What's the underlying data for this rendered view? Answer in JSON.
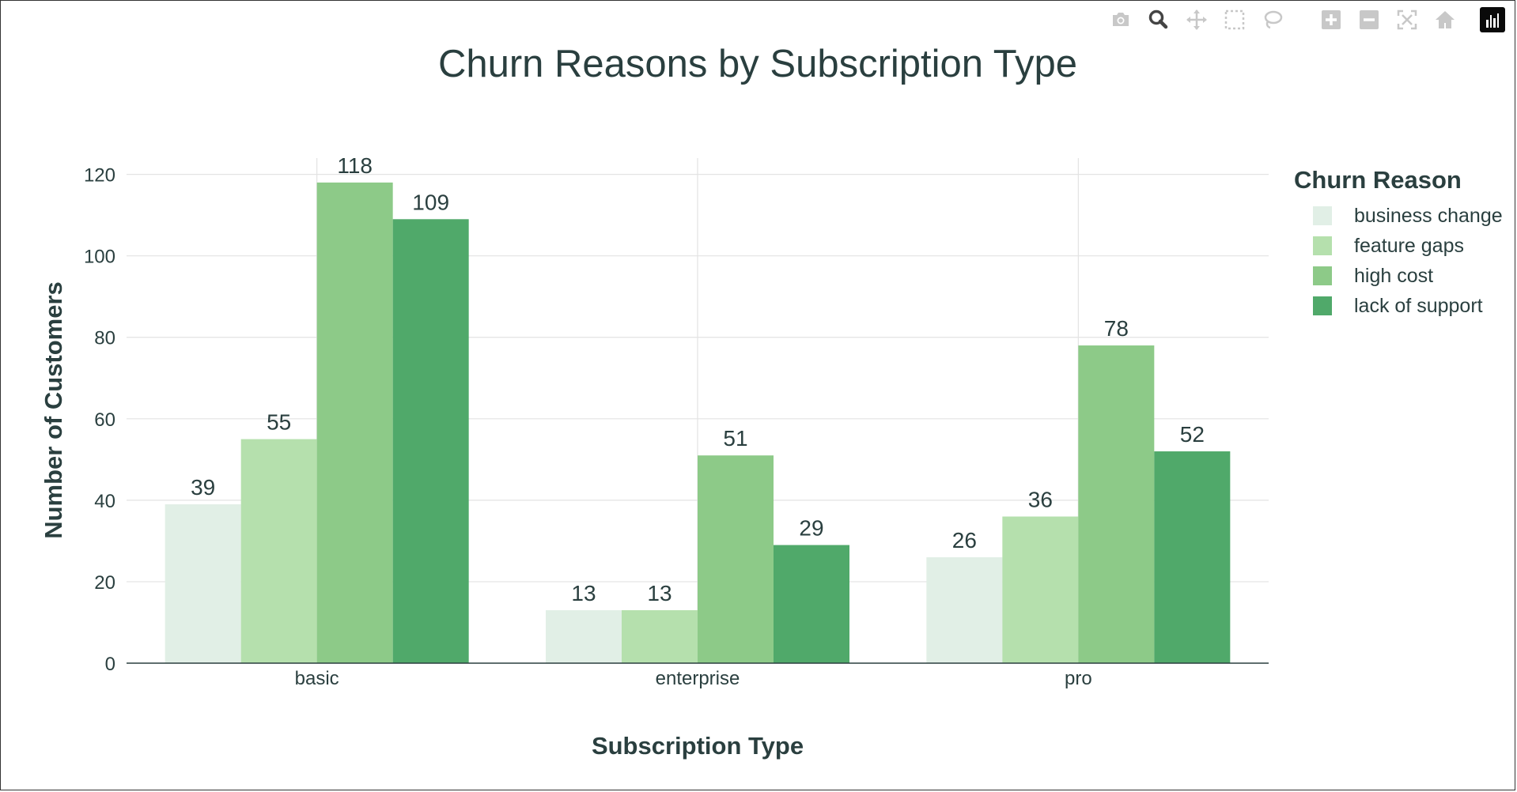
{
  "modebar": {
    "buttons": [
      [
        "camera-icon",
        "zoom-icon",
        "pan-icon",
        "box-select-icon",
        "lasso-select-icon"
      ],
      [
        "zoom-in-icon",
        "zoom-out-icon",
        "autoscale-icon",
        "reset-axes-icon"
      ]
    ]
  },
  "colors": {
    "business change": "#e1efe6",
    "feature gaps": "#b5e0ad",
    "high cost": "#8dca88",
    "lack of support": "#50a96a",
    "text": "#2a3f3f",
    "grid": "#e3e3e3"
  },
  "chart_data": {
    "type": "bar",
    "title": "Churn Reasons by Subscription Type",
    "xlabel": "Subscription Type",
    "ylabel": "Number of Customers",
    "categories": [
      "basic",
      "enterprise",
      "pro"
    ],
    "series": [
      {
        "name": "business change",
        "values": [
          39,
          13,
          26
        ]
      },
      {
        "name": "feature gaps",
        "values": [
          55,
          13,
          36
        ]
      },
      {
        "name": "high cost",
        "values": [
          118,
          51,
          78
        ]
      },
      {
        "name": "lack of support",
        "values": [
          109,
          29,
          52
        ]
      }
    ],
    "ylim": [
      0,
      124
    ],
    "yticks": [
      0,
      20,
      40,
      60,
      80,
      100,
      120
    ],
    "grid": true,
    "legend_title": "Churn Reason",
    "legend_position": "right"
  }
}
